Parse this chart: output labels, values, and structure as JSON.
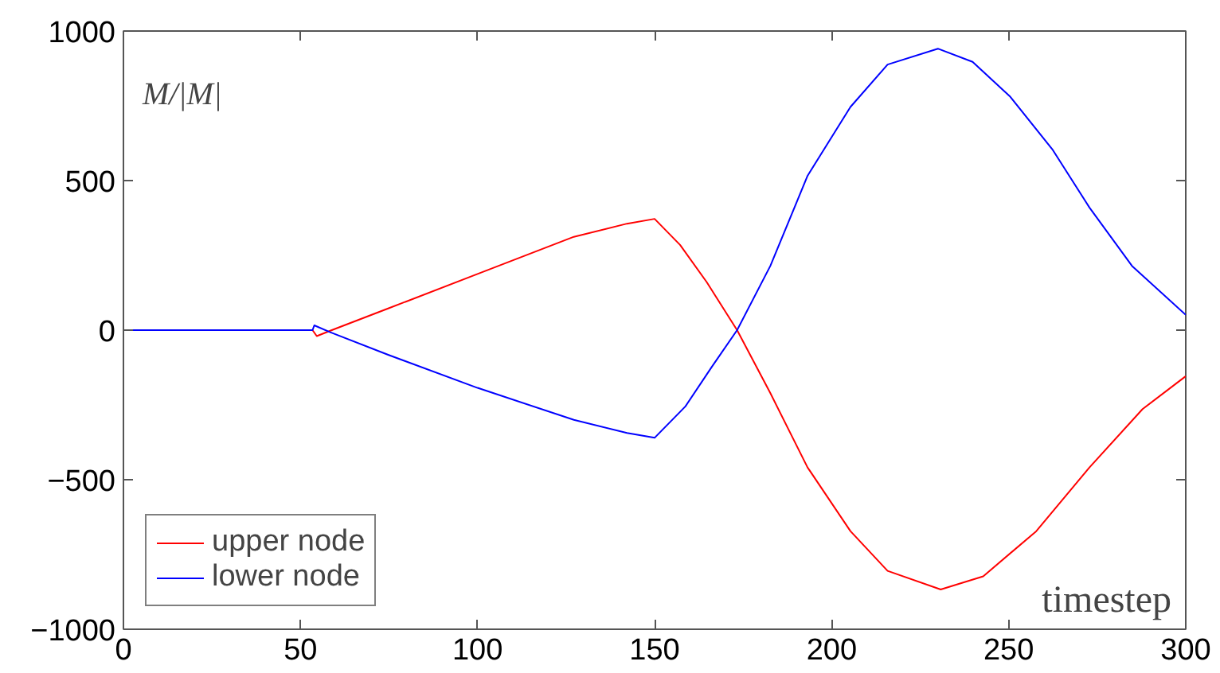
{
  "chart_data": {
    "type": "line",
    "xlabel": "timestep",
    "ylabel": "M/|M|",
    "xlim": [
      0,
      300
    ],
    "ylim": [
      -1000,
      1000
    ],
    "xticks": [
      0,
      50,
      100,
      150,
      200,
      250,
      300
    ],
    "yticks": [
      -1000,
      -500,
      0,
      500,
      1000
    ],
    "grid": false,
    "legend": "bottom left",
    "marker": "none",
    "line_style": "solid",
    "series": [
      {
        "name": "upper node",
        "color": "#ff0000",
        "x": [
          0,
          53.4,
          54.6,
          58.4,
          74.9,
          100,
          127.2,
          142.2,
          150,
          157.2,
          164.7,
          173.3,
          182.7,
          193.2,
          205.3,
          215.8,
          230.8,
          242.8,
          257.8,
          272.8,
          287.8,
          300
        ],
        "values": [
          0,
          0,
          -20,
          -2,
          73,
          188,
          312,
          356,
          372,
          285,
          161,
          0,
          -211,
          -459,
          -672,
          -805,
          -867,
          -823,
          -672,
          -459,
          -264,
          -154
        ]
      },
      {
        "name": "lower node",
        "color": "#0000ff",
        "x": [
          0,
          53.4,
          53.9,
          58.4,
          74.9,
          100,
          127.2,
          142.2,
          150,
          158.7,
          166.2,
          173.3,
          182.7,
          193.2,
          205.3,
          215.8,
          230,
          239.8,
          250.3,
          262.3,
          272.8,
          284.8,
          300
        ],
        "values": [
          0,
          0,
          16,
          -7,
          -83,
          -193,
          -300,
          -344,
          -360,
          -255,
          -122,
          0,
          215,
          516,
          746,
          888,
          941,
          897,
          782,
          605,
          410,
          215,
          51
        ]
      }
    ]
  }
}
